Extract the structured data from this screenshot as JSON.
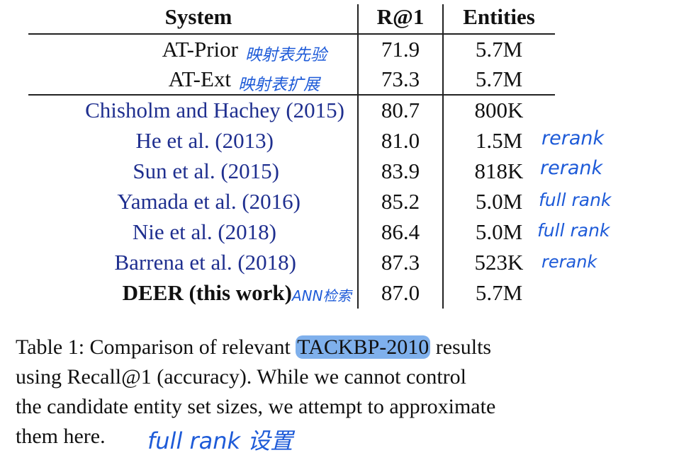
{
  "table": {
    "headers": {
      "system": "System",
      "r1": "R@1",
      "entities": "Entities"
    },
    "rows": [
      {
        "system": "AT-Prior",
        "r1": "71.9",
        "entities": "5.7M",
        "annotation": "映射表先验"
      },
      {
        "system": "AT-Ext",
        "r1": "73.3",
        "entities": "5.7M",
        "annotation": "映射表扩展"
      },
      {
        "system": "Chisholm and Hachey (2015)",
        "r1": "80.7",
        "entities": "800K",
        "annotation": ""
      },
      {
        "system": "He et al. (2013)",
        "r1": "81.0",
        "entities": "1.5M",
        "annotation": "rerank"
      },
      {
        "system": "Sun et al. (2015)",
        "r1": "83.9",
        "entities": "818K",
        "annotation": "rerank"
      },
      {
        "system": "Yamada et al. (2016)",
        "r1": "85.2",
        "entities": "5.0M",
        "annotation": "full rank"
      },
      {
        "system": "Nie et al. (2018)",
        "r1": "86.4",
        "entities": "5.0M",
        "annotation": "full rank"
      },
      {
        "system": "Barrena et al. (2018)",
        "r1": "87.3",
        "entities": "523K",
        "annotation": "rerank"
      },
      {
        "system": "DEER (this work)",
        "r1": "87.0",
        "entities": "5.7M",
        "annotation": "ANN检索"
      }
    ]
  },
  "caption": {
    "line1_prefix": "Table 1: Comparison of relevant ",
    "line1_highlight": "TACKBP-2010",
    "line1_suffix": " results",
    "line2": "using Recall@1 (accuracy).  While we cannot control",
    "line3": "the candidate entity set sizes, we attempt to approximate",
    "line4": "them here.",
    "note": "full rank 设置"
  },
  "colors": {
    "ink": "#111111",
    "citation_blue": "#1f2f8f",
    "handwriting_blue": "#1e5bd8",
    "highlight": "#7fb0ec"
  }
}
